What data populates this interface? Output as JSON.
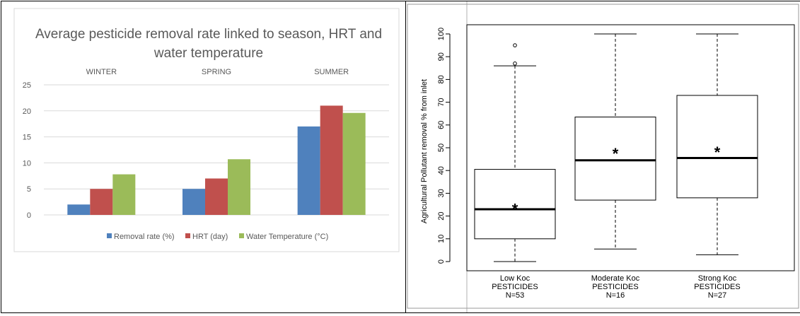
{
  "chart_data": [
    {
      "type": "bar",
      "title": "Average pesticide removal rate linked to season, HRT and water temperature",
      "title_lines": [
        "Average pesticide removal rate linked to season, HRT and",
        "water temperature"
      ],
      "categories": [
        "WINTER",
        "SPRING",
        "SUMMER"
      ],
      "series": [
        {
          "name": "Removal rate (%)",
          "values": [
            2,
            5,
            17
          ],
          "color": "#4f81bd"
        },
        {
          "name": "HRT (day)",
          "values": [
            5,
            7,
            21
          ],
          "color": "#c0504d"
        },
        {
          "name": "Water Temperature (°C)",
          "values": [
            7.8,
            10.7,
            19.6
          ],
          "color": "#9bbb59"
        }
      ],
      "ylim": [
        0,
        25
      ],
      "yticks": [
        0,
        5,
        10,
        15,
        20,
        25
      ],
      "category_labels_position": "top",
      "grid": true,
      "legend": "bottom"
    },
    {
      "type": "box",
      "ylabel": "Agricultural Pollutant removal % from inlet",
      "ylim": [
        0,
        100
      ],
      "yticks": [
        0,
        10,
        20,
        30,
        40,
        50,
        60,
        70,
        80,
        90,
        100
      ],
      "groups": [
        {
          "label_lines": [
            "Low Koc",
            "PESTICIDES",
            "N=53"
          ],
          "whisker_low": 0,
          "q1": 10,
          "median": 23,
          "q3": 40.5,
          "whisker_high": 86,
          "mean": 24,
          "outliers": [
            87,
            95
          ]
        },
        {
          "label_lines": [
            "Moderate Koc",
            "PESTICIDES",
            "N=16"
          ],
          "whisker_low": 5.5,
          "q1": 27,
          "median": 44.5,
          "q3": 63.5,
          "whisker_high": 100,
          "mean": 48.5,
          "outliers": []
        },
        {
          "label_lines": [
            "Strong Koc",
            "PESTICIDES",
            "N=27"
          ],
          "whisker_low": 3,
          "q1": 28,
          "median": 45.5,
          "q3": 73,
          "whisker_high": 100,
          "mean": 49,
          "outliers": []
        }
      ],
      "mean_marker": "*"
    }
  ]
}
